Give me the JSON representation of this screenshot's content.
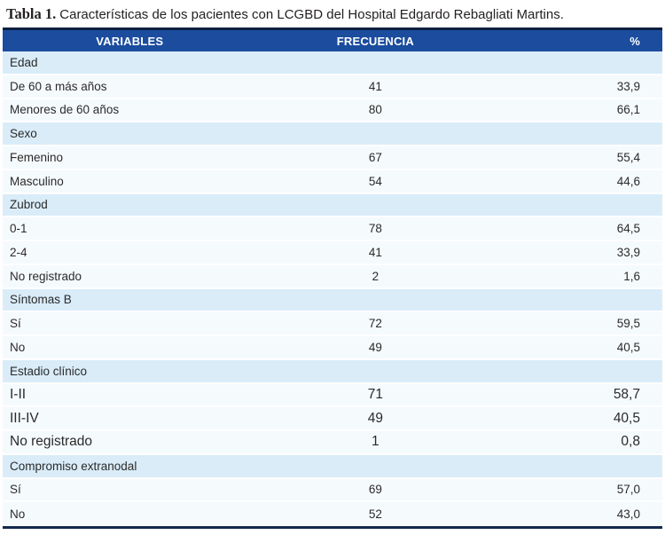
{
  "title": {
    "label": "Tabla 1.",
    "text": "Características de los pacientes con LCGBD del Hospital Edgardo Rebagliati Martins."
  },
  "colors": {
    "header_bg": "#1b4c9e",
    "header_top_border": "#0c1f3f",
    "header_text": "#ffffff",
    "category_row_bg": "#d9ecf8",
    "data_row_bg": "#f5fafd",
    "bottom_border": "#14294d",
    "body_text": "#2b2a2a"
  },
  "table": {
    "columns": [
      "VARIABLES",
      "FRECUENCIA",
      "%"
    ],
    "rows": [
      {
        "type": "category",
        "label": "Edad",
        "frecuencia": "",
        "pct": "",
        "large": false
      },
      {
        "type": "data",
        "label": "De 60 a más años",
        "frecuencia": "41",
        "pct": "33,9",
        "large": false
      },
      {
        "type": "data",
        "label": "Menores de 60 años",
        "frecuencia": "80",
        "pct": "66,1",
        "large": false
      },
      {
        "type": "category",
        "label": "Sexo",
        "frecuencia": "",
        "pct": "",
        "large": false
      },
      {
        "type": "data",
        "label": "Femenino",
        "frecuencia": "67",
        "pct": "55,4",
        "large": false
      },
      {
        "type": "data",
        "label": "Masculino",
        "frecuencia": "54",
        "pct": "44,6",
        "large": false
      },
      {
        "type": "category",
        "label": "Zubrod",
        "frecuencia": "",
        "pct": "",
        "large": false
      },
      {
        "type": "data",
        "label": "0-1",
        "frecuencia": "78",
        "pct": "64,5",
        "large": false
      },
      {
        "type": "data",
        "label": "2-4",
        "frecuencia": "41",
        "pct": "33,9",
        "large": false
      },
      {
        "type": "data",
        "label": "No registrado",
        "frecuencia": "2",
        "pct": "1,6",
        "large": false
      },
      {
        "type": "category",
        "label": "Síntomas B",
        "frecuencia": "",
        "pct": "",
        "large": false
      },
      {
        "type": "data",
        "label": "Sí",
        "frecuencia": "72",
        "pct": "59,5",
        "large": false
      },
      {
        "type": "data",
        "label": "No",
        "frecuencia": "49",
        "pct": "40,5",
        "large": false
      },
      {
        "type": "category",
        "label": "Estadio clínico",
        "frecuencia": "",
        "pct": "",
        "large": false
      },
      {
        "type": "data",
        "label": "I-II",
        "frecuencia": "71",
        "pct": "58,7",
        "large": true
      },
      {
        "type": "data",
        "label": "III-IV",
        "frecuencia": "49",
        "pct": "40,5",
        "large": true
      },
      {
        "type": "data",
        "label": "No registrado",
        "frecuencia": "1",
        "pct": "0,8",
        "large": true
      },
      {
        "type": "category",
        "label": "Compromiso extranodal",
        "frecuencia": "",
        "pct": "",
        "large": false
      },
      {
        "type": "data",
        "label": "Sí",
        "frecuencia": "69",
        "pct": "57,0",
        "large": false
      },
      {
        "type": "data",
        "label": "No",
        "frecuencia": "52",
        "pct": "43,0",
        "large": false
      }
    ]
  }
}
